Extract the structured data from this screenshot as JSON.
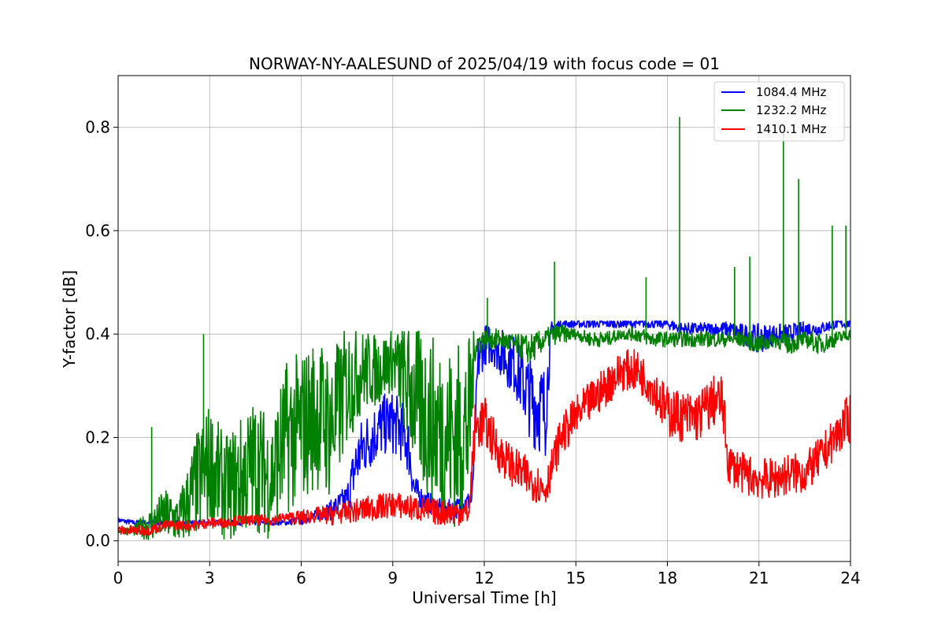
{
  "chart_data": {
    "type": "line",
    "title": "NORWAY-NY-AALESUND of 2025/04/19 with focus code = 01",
    "xlabel": "Universal Time [h]",
    "ylabel": "Y-factor [dB]",
    "xlim": [
      0,
      24
    ],
    "ylim": [
      -0.04,
      0.9
    ],
    "xticks": [
      0,
      3,
      6,
      9,
      12,
      15,
      18,
      21,
      24
    ],
    "xtick_labels": [
      "0",
      "3",
      "6",
      "9",
      "12",
      "15",
      "18",
      "21",
      "24"
    ],
    "yticks": [
      0.0,
      0.2,
      0.4,
      0.6,
      0.8
    ],
    "ytick_labels": [
      "0.0",
      "0.2",
      "0.4",
      "0.6",
      "0.8"
    ],
    "grid": true,
    "legend_position": "top-right",
    "series": [
      {
        "name": "1084.4 MHz",
        "color": "#0000ff",
        "x": [
          0.0,
          0.5,
          1.0,
          1.5,
          2.0,
          2.5,
          3.0,
          3.5,
          4.0,
          4.5,
          5.0,
          5.5,
          6.0,
          6.5,
          7.0,
          7.5,
          7.8,
          8.0,
          8.3,
          8.6,
          8.9,
          9.2,
          9.5,
          9.7,
          10.0,
          10.3,
          10.6,
          11.0,
          11.3,
          11.6,
          11.8,
          12.0,
          12.3,
          12.6,
          13.0,
          13.3,
          13.6,
          14.0,
          14.2,
          14.5,
          15.0,
          15.5,
          16.0,
          16.5,
          17.0,
          17.5,
          18.0,
          18.5,
          19.0,
          19.5,
          20.0,
          20.5,
          21.0,
          21.5,
          22.0,
          22.5,
          23.0,
          23.5,
          24.0
        ],
        "y": [
          0.04,
          0.035,
          0.035,
          0.035,
          0.035,
          0.035,
          0.035,
          0.035,
          0.035,
          0.035,
          0.035,
          0.035,
          0.04,
          0.05,
          0.06,
          0.08,
          0.15,
          0.18,
          0.2,
          0.22,
          0.23,
          0.22,
          0.19,
          0.1,
          0.08,
          0.07,
          0.06,
          0.06,
          0.07,
          0.08,
          0.35,
          0.38,
          0.38,
          0.36,
          0.34,
          0.3,
          0.27,
          0.25,
          0.41,
          0.42,
          0.42,
          0.42,
          0.42,
          0.42,
          0.42,
          0.42,
          0.42,
          0.41,
          0.41,
          0.41,
          0.41,
          0.4,
          0.39,
          0.4,
          0.4,
          0.41,
          0.41,
          0.42,
          0.42
        ],
        "spread": [
          0.005,
          0.005,
          0.005,
          0.005,
          0.005,
          0.005,
          0.005,
          0.005,
          0.005,
          0.005,
          0.005,
          0.005,
          0.01,
          0.01,
          0.02,
          0.03,
          0.06,
          0.06,
          0.06,
          0.06,
          0.06,
          0.06,
          0.06,
          0.03,
          0.02,
          0.02,
          0.02,
          0.02,
          0.02,
          0.02,
          0.05,
          0.04,
          0.04,
          0.05,
          0.06,
          0.07,
          0.09,
          0.09,
          0.015,
          0.008,
          0.008,
          0.008,
          0.008,
          0.008,
          0.008,
          0.008,
          0.01,
          0.012,
          0.012,
          0.012,
          0.015,
          0.02,
          0.03,
          0.02,
          0.02,
          0.015,
          0.012,
          0.01,
          0.008
        ]
      },
      {
        "name": "1232.2 MHz",
        "color": "#008000",
        "x": [
          0.0,
          0.5,
          1.0,
          1.5,
          2.0,
          2.5,
          3.0,
          3.5,
          4.0,
          4.5,
          5.0,
          5.5,
          6.0,
          6.5,
          7.0,
          7.5,
          8.0,
          8.5,
          9.0,
          9.5,
          10.0,
          10.5,
          11.0,
          11.5,
          11.7,
          12.0,
          12.5,
          13.0,
          13.5,
          14.0,
          14.3,
          14.5,
          15.0,
          15.5,
          16.0,
          16.5,
          17.0,
          17.5,
          18.0,
          18.5,
          19.0,
          19.5,
          20.0,
          20.5,
          21.0,
          21.5,
          22.0,
          22.5,
          23.0,
          23.5,
          24.0
        ],
        "y": [
          0.02,
          0.02,
          0.03,
          0.05,
          0.04,
          0.1,
          0.15,
          0.1,
          0.12,
          0.15,
          0.12,
          0.2,
          0.22,
          0.25,
          0.22,
          0.3,
          0.33,
          0.33,
          0.35,
          0.3,
          0.25,
          0.22,
          0.2,
          0.22,
          0.38,
          0.39,
          0.39,
          0.38,
          0.37,
          0.39,
          0.4,
          0.4,
          0.4,
          0.39,
          0.39,
          0.4,
          0.4,
          0.39,
          0.39,
          0.39,
          0.39,
          0.39,
          0.39,
          0.39,
          0.38,
          0.39,
          0.38,
          0.39,
          0.38,
          0.39,
          0.4
        ],
        "spread": [
          0.005,
          0.01,
          0.03,
          0.05,
          0.05,
          0.1,
          0.12,
          0.1,
          0.12,
          0.13,
          0.12,
          0.15,
          0.15,
          0.15,
          0.15,
          0.12,
          0.08,
          0.07,
          0.06,
          0.12,
          0.16,
          0.17,
          0.18,
          0.18,
          0.03,
          0.02,
          0.02,
          0.02,
          0.03,
          0.02,
          0.02,
          0.02,
          0.01,
          0.015,
          0.015,
          0.01,
          0.015,
          0.015,
          0.015,
          0.015,
          0.015,
          0.015,
          0.015,
          0.015,
          0.02,
          0.015,
          0.02,
          0.015,
          0.02,
          0.015,
          0.01
        ]
      },
      {
        "name": "1410.1 MHz",
        "color": "#ff0000",
        "x": [
          0.0,
          0.5,
          1.0,
          1.5,
          2.0,
          2.5,
          3.0,
          3.5,
          4.0,
          4.5,
          5.0,
          5.5,
          6.0,
          6.5,
          7.0,
          7.5,
          8.0,
          8.5,
          9.0,
          9.5,
          10.0,
          10.5,
          11.0,
          11.5,
          11.7,
          12.0,
          12.5,
          13.0,
          13.5,
          14.0,
          14.5,
          15.0,
          15.5,
          16.0,
          16.5,
          17.0,
          17.5,
          18.0,
          18.5,
          19.0,
          19.5,
          19.8,
          20.0,
          20.5,
          21.0,
          21.5,
          22.0,
          22.5,
          23.0,
          23.5,
          24.0
        ],
        "y": [
          0.02,
          0.02,
          0.02,
          0.03,
          0.03,
          0.03,
          0.035,
          0.035,
          0.04,
          0.04,
          0.04,
          0.045,
          0.045,
          0.05,
          0.05,
          0.055,
          0.06,
          0.065,
          0.07,
          0.065,
          0.06,
          0.055,
          0.055,
          0.055,
          0.22,
          0.23,
          0.17,
          0.14,
          0.12,
          0.1,
          0.2,
          0.24,
          0.27,
          0.3,
          0.33,
          0.33,
          0.3,
          0.25,
          0.24,
          0.24,
          0.27,
          0.27,
          0.15,
          0.13,
          0.12,
          0.12,
          0.13,
          0.13,
          0.16,
          0.2,
          0.24
        ],
        "spread": [
          0.01,
          0.01,
          0.01,
          0.01,
          0.01,
          0.01,
          0.01,
          0.01,
          0.01,
          0.01,
          0.01,
          0.01,
          0.015,
          0.015,
          0.02,
          0.02,
          0.025,
          0.025,
          0.025,
          0.025,
          0.025,
          0.025,
          0.025,
          0.025,
          0.05,
          0.05,
          0.04,
          0.04,
          0.04,
          0.035,
          0.04,
          0.04,
          0.04,
          0.04,
          0.04,
          0.04,
          0.04,
          0.05,
          0.05,
          0.05,
          0.05,
          0.05,
          0.04,
          0.04,
          0.04,
          0.04,
          0.04,
          0.04,
          0.04,
          0.04,
          0.05
        ]
      }
    ],
    "spikes": [
      {
        "series": "1232.2 MHz",
        "x": 18.4,
        "y": 0.82
      },
      {
        "series": "1232.2 MHz",
        "x": 21.8,
        "y": 0.79
      },
      {
        "series": "1232.2 MHz",
        "x": 22.3,
        "y": 0.7
      },
      {
        "series": "1232.2 MHz",
        "x": 23.4,
        "y": 0.61
      },
      {
        "series": "1232.2 MHz",
        "x": 23.85,
        "y": 0.61
      },
      {
        "series": "1232.2 MHz",
        "x": 20.7,
        "y": 0.55
      },
      {
        "series": "1232.2 MHz",
        "x": 20.2,
        "y": 0.53
      },
      {
        "series": "1232.2 MHz",
        "x": 14.3,
        "y": 0.54
      },
      {
        "series": "1232.2 MHz",
        "x": 17.3,
        "y": 0.51
      },
      {
        "series": "1232.2 MHz",
        "x": 12.1,
        "y": 0.47
      },
      {
        "series": "1232.2 MHz",
        "x": 2.8,
        "y": 0.4
      },
      {
        "series": "1232.2 MHz",
        "x": 1.1,
        "y": 0.22
      }
    ]
  }
}
